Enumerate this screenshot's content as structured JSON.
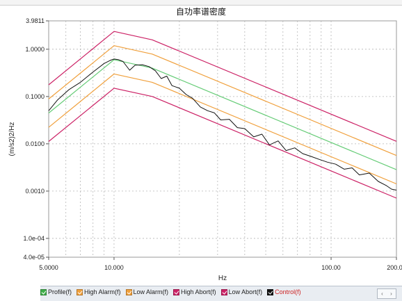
{
  "chart_data": {
    "type": "line",
    "title": "自功率谱密度",
    "xlabel": "Hz",
    "ylabel": "(m/s2)2/Hz",
    "xscale": "log",
    "yscale": "log",
    "xlim": [
      5,
      200
    ],
    "ylim": [
      4e-05,
      3.9811
    ],
    "x_ticks": [
      5,
      10,
      100,
      200
    ],
    "x_tick_labels": [
      "5.0000",
      "10.000",
      "100.00",
      "200.00"
    ],
    "y_ticks": [
      3.9811,
      1,
      0.1,
      0.01,
      0.001,
      0.0001,
      4e-05
    ],
    "y_tick_labels": [
      "3.9811",
      "1.0000",
      "0.1000",
      "0.0100",
      "0.0010",
      "1.0e-04",
      "4.0e-05"
    ],
    "grid": true,
    "series": [
      {
        "name": "Profile(f)",
        "color": "#66cc77",
        "x": [
          5,
          10,
          15,
          200
        ],
        "y": [
          0.0447,
          0.6,
          0.4,
          0.00284
        ]
      },
      {
        "name": "High Alarm(f)",
        "color": "#f0a03c",
        "x": [
          5,
          10,
          15,
          200
        ],
        "y": [
          0.0887,
          1.19,
          0.79,
          0.00565
        ]
      },
      {
        "name": "Low Alarm(f)",
        "color": "#f0a03c",
        "x": [
          5,
          10,
          15,
          200
        ],
        "y": [
          0.0223,
          0.3,
          0.2,
          0.00142
        ]
      },
      {
        "name": "High Abort(f)",
        "color": "#cc2266",
        "x": [
          5,
          10,
          15,
          200
        ],
        "y": [
          0.177,
          2.38,
          1.58,
          0.0113
        ]
      },
      {
        "name": "Low Abort(f)",
        "color": "#cc2266",
        "x": [
          5,
          10,
          15,
          200
        ],
        "y": [
          0.0112,
          0.15,
          0.1,
          0.00071
        ]
      },
      {
        "name": "Control(f)",
        "color": "#111111",
        "x": [
          5,
          5.5,
          6.2,
          7,
          8,
          9,
          9.6,
          10,
          10.5,
          11,
          11.8,
          12.5,
          13.5,
          14.5,
          15.5,
          16.5,
          17.5,
          18.5,
          20,
          21.5,
          23,
          25,
          27,
          29,
          31,
          34,
          37,
          40,
          44,
          48,
          52,
          57,
          62,
          68,
          74,
          80,
          88,
          96,
          105,
          115,
          125,
          135,
          150,
          165,
          180,
          190,
          200
        ],
        "y": [
          0.05,
          0.085,
          0.14,
          0.2,
          0.33,
          0.5,
          0.58,
          0.62,
          0.6,
          0.55,
          0.36,
          0.46,
          0.47,
          0.43,
          0.35,
          0.24,
          0.27,
          0.17,
          0.15,
          0.11,
          0.092,
          0.06,
          0.05,
          0.045,
          0.032,
          0.033,
          0.022,
          0.021,
          0.014,
          0.016,
          0.0095,
          0.0115,
          0.0072,
          0.0082,
          0.0062,
          0.0055,
          0.0047,
          0.0041,
          0.0037,
          0.0029,
          0.0031,
          0.0022,
          0.0024,
          0.0016,
          0.0013,
          0.0011,
          0.00105
        ]
      }
    ]
  },
  "legend": {
    "items": [
      {
        "label": "Profile(f)",
        "color": "#3fae4a"
      },
      {
        "label": "High Alarm(f)",
        "color": "#f0a03c"
      },
      {
        "label": "Low Alarm(f)",
        "color": "#f0a03c"
      },
      {
        "label": "High Abort(f)",
        "color": "#cc2266"
      },
      {
        "label": "Low Abort(f)",
        "color": "#cc2266"
      },
      {
        "label": "Control(f)",
        "color": "#111111"
      }
    ]
  },
  "scroll": {
    "left": "‹",
    "right": "›"
  }
}
